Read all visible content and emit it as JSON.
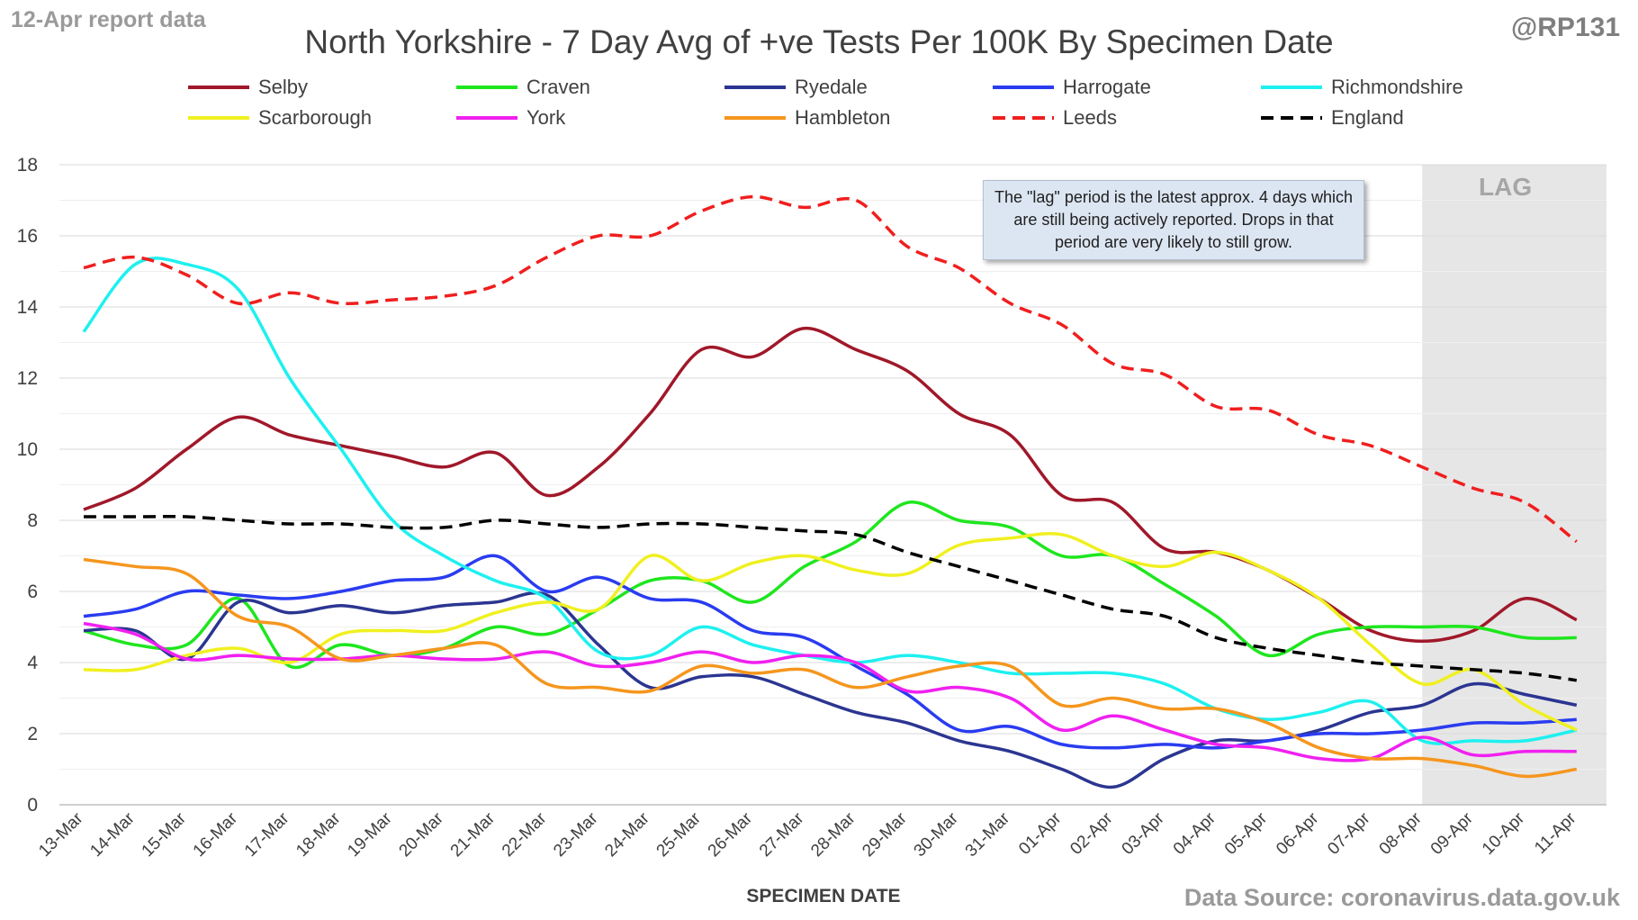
{
  "header": {
    "report_label": "12-Apr report data",
    "handle": "@RP131",
    "source": "Data Source: coronavirus.data.gov.uk"
  },
  "note": "The \"lag\" period is the latest approx. 4 days which are still being actively reported. Drops in that period are very likely to still grow.",
  "chart_data": {
    "type": "line",
    "title": "North Yorkshire - 7 Day Avg of +ve Tests Per 100K By Specimen Date",
    "xlabel": "SPECIMEN DATE",
    "ylabel": "",
    "ylim": [
      0,
      18
    ],
    "ytick_step": 2,
    "grid": "horizontal",
    "legend_position": "top",
    "shaded_region": {
      "label": "LAG",
      "start": "08-Apr",
      "end": "11-Apr",
      "color": "#e6e6e6"
    },
    "x": [
      "13-Mar",
      "14-Mar",
      "15-Mar",
      "16-Mar",
      "17-Mar",
      "18-Mar",
      "19-Mar",
      "20-Mar",
      "21-Mar",
      "22-Mar",
      "23-Mar",
      "24-Mar",
      "25-Mar",
      "26-Mar",
      "27-Mar",
      "28-Mar",
      "29-Mar",
      "30-Mar",
      "31-Mar",
      "01-Apr",
      "02-Apr",
      "03-Apr",
      "04-Apr",
      "05-Apr",
      "06-Apr",
      "07-Apr",
      "08-Apr",
      "09-Apr",
      "10-Apr",
      "11-Apr"
    ],
    "series": [
      {
        "name": "Selby",
        "color": "#a0182a",
        "dash": "solid",
        "values": [
          8.3,
          8.9,
          10.0,
          10.9,
          10.4,
          10.1,
          9.8,
          9.5,
          9.9,
          8.7,
          9.5,
          11.0,
          12.8,
          12.6,
          13.4,
          12.8,
          12.2,
          11.0,
          10.4,
          8.7,
          8.5,
          7.2,
          7.1,
          6.6,
          5.8,
          4.9,
          4.6,
          4.9,
          5.8,
          5.2
        ]
      },
      {
        "name": "Craven",
        "color": "#1ee61e",
        "dash": "solid",
        "values": [
          4.9,
          4.5,
          4.5,
          5.8,
          3.9,
          4.5,
          4.2,
          4.4,
          5.0,
          4.8,
          5.5,
          6.3,
          6.3,
          5.7,
          6.7,
          7.4,
          8.5,
          8.0,
          7.8,
          7.0,
          7.0,
          6.2,
          5.3,
          4.2,
          4.8,
          5.0,
          5.0,
          5.0,
          4.7,
          4.7
        ]
      },
      {
        "name": "Ryedale",
        "color": "#2b3591",
        "dash": "solid",
        "values": [
          4.9,
          4.9,
          4.1,
          5.7,
          5.4,
          5.6,
          5.4,
          5.6,
          5.7,
          5.9,
          4.5,
          3.3,
          3.6,
          3.6,
          3.1,
          2.6,
          2.3,
          1.8,
          1.5,
          1.0,
          0.5,
          1.3,
          1.8,
          1.8,
          2.1,
          2.6,
          2.8,
          3.4,
          3.1,
          2.8
        ]
      },
      {
        "name": "Harrogate",
        "color": "#2a3cf0",
        "dash": "solid",
        "values": [
          5.3,
          5.5,
          6.0,
          5.9,
          5.8,
          6.0,
          6.3,
          6.4,
          7.0,
          6.0,
          6.4,
          5.8,
          5.7,
          4.9,
          4.7,
          3.9,
          3.1,
          2.1,
          2.2,
          1.7,
          1.6,
          1.7,
          1.6,
          1.8,
          2.0,
          2.0,
          2.1,
          2.3,
          2.3,
          2.4
        ]
      },
      {
        "name": "Richmondshire",
        "color": "#1ef0f0",
        "dash": "solid",
        "values": [
          13.3,
          15.2,
          15.2,
          14.5,
          12.0,
          10.0,
          8.0,
          7.0,
          6.3,
          5.8,
          4.3,
          4.2,
          5.0,
          4.5,
          4.2,
          4.0,
          4.2,
          4.0,
          3.7,
          3.7,
          3.7,
          3.4,
          2.7,
          2.4,
          2.6,
          2.9,
          1.8,
          1.8,
          1.8,
          2.1
        ]
      },
      {
        "name": "Scarborough",
        "color": "#f0f020",
        "dash": "solid",
        "values": [
          3.8,
          3.8,
          4.2,
          4.4,
          4.0,
          4.8,
          4.9,
          4.9,
          5.4,
          5.7,
          5.5,
          7.0,
          6.3,
          6.8,
          7.0,
          6.6,
          6.5,
          7.3,
          7.5,
          7.6,
          7.0,
          6.7,
          7.1,
          6.6,
          5.8,
          4.5,
          3.4,
          3.8,
          2.8,
          2.1
        ]
      },
      {
        "name": "York",
        "color": "#f020f0",
        "dash": "solid",
        "values": [
          5.1,
          4.8,
          4.1,
          4.2,
          4.1,
          4.1,
          4.2,
          4.1,
          4.1,
          4.3,
          3.9,
          4.0,
          4.3,
          4.0,
          4.2,
          4.0,
          3.2,
          3.3,
          3.0,
          2.1,
          2.5,
          2.1,
          1.7,
          1.6,
          1.3,
          1.3,
          1.9,
          1.4,
          1.5,
          1.5
        ]
      },
      {
        "name": "Hambleton",
        "color": "#f5961e",
        "dash": "solid",
        "values": [
          6.9,
          6.7,
          6.5,
          5.3,
          5.0,
          4.1,
          4.2,
          4.4,
          4.5,
          3.4,
          3.3,
          3.2,
          3.9,
          3.7,
          3.8,
          3.3,
          3.6,
          3.9,
          3.9,
          2.8,
          3.0,
          2.7,
          2.7,
          2.3,
          1.6,
          1.3,
          1.3,
          1.1,
          0.8,
          1.0
        ]
      },
      {
        "name": "Leeds",
        "color": "#f01e1e",
        "dash": "dashed",
        "values": [
          15.1,
          15.4,
          14.9,
          14.1,
          14.4,
          14.1,
          14.2,
          14.3,
          14.6,
          15.4,
          16.0,
          16.0,
          16.7,
          17.1,
          16.8,
          17.0,
          15.7,
          15.1,
          14.1,
          13.5,
          12.4,
          12.1,
          11.2,
          11.1,
          10.4,
          10.1,
          9.5,
          8.9,
          8.5,
          7.4
        ]
      },
      {
        "name": "England",
        "color": "#000000",
        "dash": "dashed",
        "values": [
          8.1,
          8.1,
          8.1,
          8.0,
          7.9,
          7.9,
          7.8,
          7.8,
          8.0,
          7.9,
          7.8,
          7.9,
          7.9,
          7.8,
          7.7,
          7.6,
          7.1,
          6.7,
          6.3,
          5.9,
          5.5,
          5.3,
          4.7,
          4.4,
          4.2,
          4.0,
          3.9,
          3.8,
          3.7,
          3.5
        ]
      }
    ]
  }
}
